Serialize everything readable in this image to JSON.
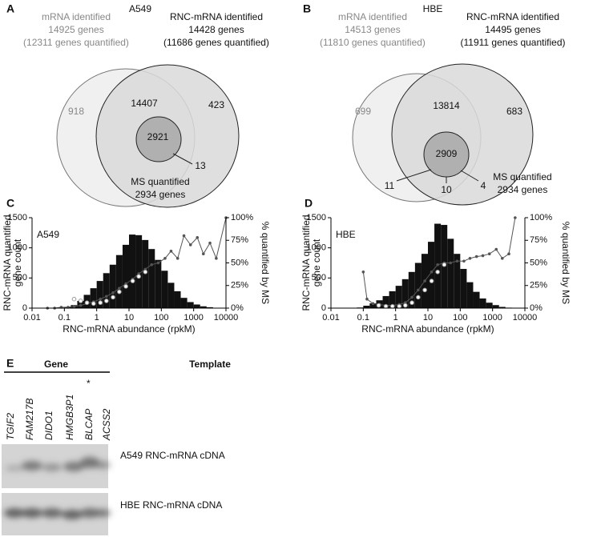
{
  "chart_data": [
    {
      "type": "venn",
      "label": "A",
      "title": "A549",
      "sets": [
        {
          "name": "mRNA identified",
          "count": "14925 genes",
          "note": "(12311 genes quantified)",
          "color": "#f0f0f0"
        },
        {
          "name": "RNC-mRNA identified",
          "count": "14428 genes",
          "note": "(11686 genes quantified)",
          "color": "#d9d9d9"
        },
        {
          "name": "MS quantified",
          "count": "2934 genes",
          "color": "#a8a8a8"
        }
      ],
      "regions": [
        918,
        14407,
        423,
        2921,
        13
      ]
    },
    {
      "type": "venn",
      "label": "B",
      "title": "HBE",
      "sets": [
        {
          "name": "mRNA identified",
          "count": "14513 genes",
          "note": "(11810 genes quantified)",
          "color": "#f0f0f0"
        },
        {
          "name": "RNC-mRNA identified",
          "count": "14495 genes",
          "note": "(11911 genes quantified)",
          "color": "#d9d9d9"
        },
        {
          "name": "MS quantified",
          "count": "2934 genes",
          "color": "#a8a8a8"
        }
      ],
      "regions": [
        699,
        13814,
        683,
        2909,
        11,
        10,
        4
      ]
    },
    {
      "type": "histogram",
      "label": "C",
      "title": "A549",
      "ylabel": [
        "RNC-mRNA quantified",
        "gene count"
      ],
      "y2label": "% quantified by MS",
      "xlabel": "RNC-mRNA abundance (rpkM)",
      "xscale": "log",
      "xlim": [
        0.01,
        10000
      ],
      "xticks": [
        0.01,
        0.1,
        1,
        10,
        100,
        1000,
        10000
      ],
      "ylim": [
        0,
        1500
      ],
      "yticks": [
        0,
        500,
        1000,
        1500
      ],
      "y2lim": [
        0,
        100
      ],
      "y2ticks": [
        {
          "value": 0,
          "label": "0%"
        },
        {
          "value": 25,
          "label": "25%"
        },
        {
          "value": 50,
          "label": "50%"
        },
        {
          "value": 75,
          "label": "75%"
        },
        {
          "value": 100,
          "label": "100%"
        }
      ],
      "color": "#111111",
      "bins": [
        0.063,
        0.1,
        0.158,
        0.251,
        0.398,
        0.631,
        1,
        1.585,
        2.512,
        3.981,
        6.31,
        10,
        15.85,
        25.12,
        39.81,
        63.1,
        100,
        158.5,
        251.2,
        398.1,
        631,
        1000,
        1585,
        2512,
        3981
      ],
      "counts": [
        5,
        20,
        50,
        120,
        220,
        330,
        450,
        580,
        720,
        880,
        1050,
        1220,
        1210,
        1130,
        980,
        800,
        620,
        420,
        280,
        170,
        100,
        60,
        30,
        15
      ],
      "series": [
        {
          "color": "#555555",
          "axis": "y2",
          "marker": "dot",
          "x": [
            0.03,
            0.05,
            0.08,
            0.13,
            0.2,
            0.32,
            0.5,
            0.8,
            1.3,
            2,
            3.2,
            5,
            8,
            13,
            20,
            32,
            50,
            80,
            130,
            200,
            320,
            500,
            800,
            1300,
            2000,
            3200,
            5000,
            10000
          ],
          "values": [
            0,
            0,
            1,
            1,
            2,
            3,
            5,
            7,
            10,
            13,
            17,
            22,
            27,
            32,
            38,
            43,
            48,
            50,
            55,
            63,
            55,
            80,
            70,
            78,
            60,
            72,
            55,
            100
          ]
        },
        {
          "color": "#999999",
          "axis": "y2",
          "marker": "open",
          "x": [
            0.2,
            0.32,
            0.5,
            0.8,
            1.3,
            2,
            3.2,
            5,
            8,
            13,
            20,
            32
          ],
          "values": [
            10,
            8,
            6,
            5,
            6,
            8,
            12,
            18,
            24,
            30,
            35,
            40
          ]
        }
      ]
    },
    {
      "type": "histogram",
      "label": "D",
      "title": "HBE",
      "ylabel": [
        "RNC-mRNA quantified",
        "gene count"
      ],
      "y2label": "% quantified by MS",
      "xlabel": "RNC-mRNA abundance (rpkM)",
      "xscale": "log",
      "xlim": [
        0.01,
        10000
      ],
      "xticks": [
        0.01,
        0.1,
        1,
        10,
        100,
        1000,
        10000
      ],
      "ylim": [
        0,
        1500
      ],
      "yticks": [
        0,
        500,
        1000,
        1500
      ],
      "y2lim": [
        0,
        100
      ],
      "y2ticks": [
        {
          "value": 0,
          "label": "0%"
        },
        {
          "value": 25,
          "label": "25%"
        },
        {
          "value": 50,
          "label": "50%"
        },
        {
          "value": 75,
          "label": "75%"
        },
        {
          "value": 100,
          "label": "100%"
        }
      ],
      "color": "#111111",
      "bins": [
        0.063,
        0.1,
        0.158,
        0.251,
        0.398,
        0.631,
        1,
        1.585,
        2.512,
        3.981,
        6.31,
        10,
        15.85,
        25.12,
        39.81,
        63.1,
        100,
        158.5,
        251.2,
        398.1,
        631,
        1000,
        1585,
        2512,
        3981
      ],
      "counts": [
        10,
        40,
        80,
        130,
        200,
        280,
        370,
        480,
        600,
        750,
        900,
        1100,
        1400,
        1380,
        1150,
        900,
        650,
        430,
        270,
        160,
        90,
        50,
        20,
        8
      ],
      "series": [
        {
          "color": "#555555",
          "axis": "y2",
          "marker": "dot",
          "x": [
            0.1,
            0.13,
            0.2,
            0.32,
            0.5,
            0.8,
            1.3,
            2,
            3.2,
            5,
            8,
            13,
            20,
            32,
            50,
            80,
            130,
            200,
            320,
            500,
            800,
            1300,
            2000,
            3200,
            5000
          ],
          "values": [
            40,
            10,
            5,
            4,
            3,
            3,
            4,
            6,
            12,
            20,
            30,
            40,
            48,
            50,
            50,
            52,
            52,
            55,
            57,
            58,
            60,
            65,
            55,
            60,
            100
          ]
        },
        {
          "color": "#999999",
          "axis": "y2",
          "marker": "open",
          "x": [
            0.3,
            0.5,
            0.8,
            1.3,
            2,
            3.2,
            5,
            8,
            13,
            20,
            32
          ],
          "values": [
            3,
            2,
            2,
            2,
            3,
            6,
            12,
            20,
            30,
            40,
            48
          ]
        }
      ]
    }
  ],
  "gel": {
    "label": "E",
    "gene_header": "Gene",
    "template_header": "Template",
    "genes": [
      "TGIF2",
      "FAM217B",
      "DIDO1",
      "HMGB3P1",
      "BLCAP",
      "ACSS2"
    ],
    "marker": "*",
    "rows": [
      "A549 RNC-mRNA cDNA",
      "HBE RNC-mRNA cDNA"
    ]
  }
}
